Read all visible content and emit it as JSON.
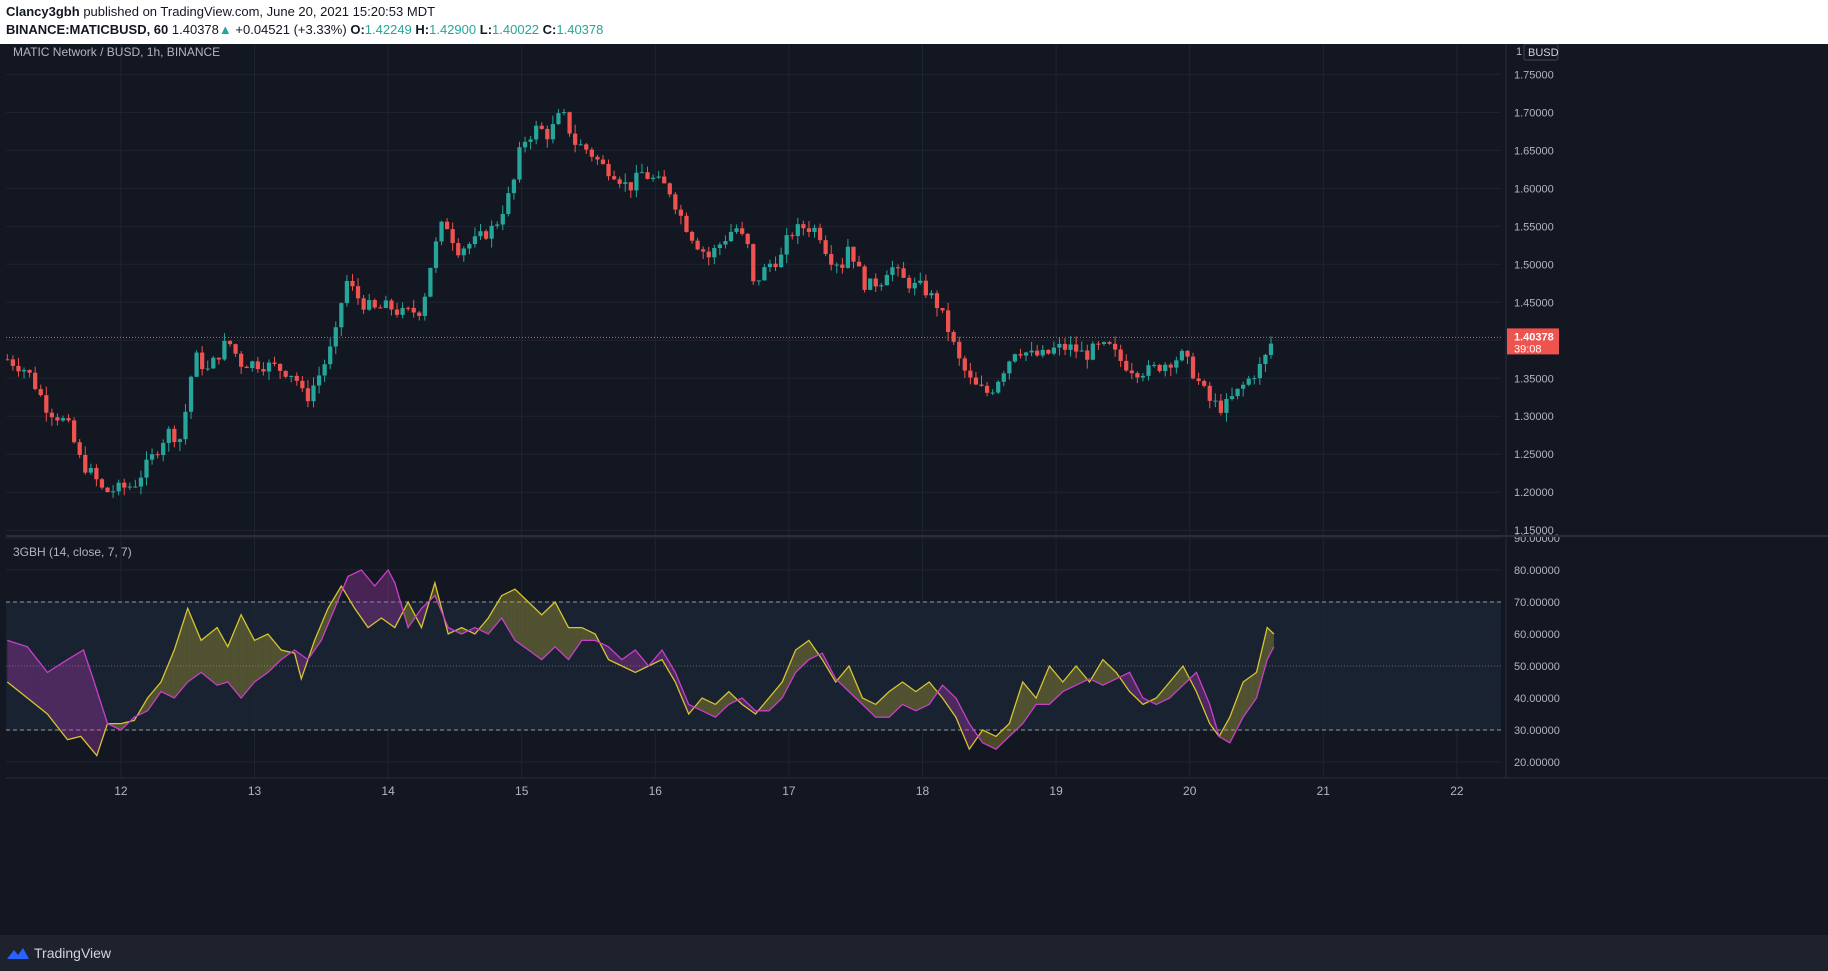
{
  "header": {
    "author": "Clancy3gbh",
    "published": "published on TradingView.com, June 20, 2021 15:20:53 MDT",
    "symbol": "BINANCE:MATICBUSD, 60",
    "last": "1.40378",
    "change_arrow": "▲",
    "change": "+0.04521 (+3.33%)",
    "o_label": "O:",
    "o_value": "1.42249",
    "h_label": "H:",
    "h_value": "1.42900",
    "l_label": "L:",
    "l_value": "1.40022",
    "c_label": "C:",
    "c_value": "1.40378"
  },
  "colors": {
    "background": "#131722",
    "grid": "#1f2430",
    "up": "#26a69a",
    "down": "#ef5350",
    "fast_line": "#d4c531",
    "slow_line": "#c83fc8",
    "band_fill": "#192231"
  },
  "footer": {
    "brand": "TradingView",
    "logo_icon": "tradingview-logo-icon"
  },
  "chart_data": [
    {
      "type": "candlestick",
      "title": "MATIC Network / BUSD, 1h, BINANCE",
      "currency": "BUSD",
      "scale_mode": "1",
      "x_ticks": [
        "12",
        "13",
        "14",
        "15",
        "16",
        "17",
        "18",
        "19",
        "20",
        "21",
        "22"
      ],
      "y_ticks": [
        "1.75000",
        "1.70000",
        "1.65000",
        "1.60000",
        "1.55000",
        "1.50000",
        "1.45000",
        "1.40000",
        "1.35000",
        "1.30000",
        "1.25000",
        "1.20000",
        "1.15000"
      ],
      "ylim": [
        1.145,
        1.79
      ],
      "xlim": [
        11.14,
        22.33
      ],
      "last_price": "1.40378",
      "countdown": "39:08",
      "anchors": [
        [
          11.15,
          1.375
        ],
        [
          11.3,
          1.36
        ],
        [
          11.45,
          1.31
        ],
        [
          11.6,
          1.29
        ],
        [
          11.7,
          1.24
        ],
        [
          11.8,
          1.22
        ],
        [
          11.87,
          1.2
        ],
        [
          12.0,
          1.205
        ],
        [
          12.1,
          1.21
        ],
        [
          12.25,
          1.25
        ],
        [
          12.35,
          1.28
        ],
        [
          12.45,
          1.27
        ],
        [
          12.55,
          1.38
        ],
        [
          12.65,
          1.36
        ],
        [
          12.8,
          1.4
        ],
        [
          12.9,
          1.37
        ],
        [
          13.0,
          1.37
        ],
        [
          13.15,
          1.365
        ],
        [
          13.3,
          1.355
        ],
        [
          13.38,
          1.32
        ],
        [
          13.5,
          1.36
        ],
        [
          13.6,
          1.4
        ],
        [
          13.68,
          1.48
        ],
        [
          13.8,
          1.45
        ],
        [
          13.9,
          1.44
        ],
        [
          14.0,
          1.445
        ],
        [
          14.1,
          1.435
        ],
        [
          14.25,
          1.44
        ],
        [
          14.33,
          1.51
        ],
        [
          14.42,
          1.56
        ],
        [
          14.52,
          1.52
        ],
        [
          14.65,
          1.53
        ],
        [
          14.8,
          1.55
        ],
        [
          14.93,
          1.6
        ],
        [
          15.0,
          1.66
        ],
        [
          15.12,
          1.68
        ],
        [
          15.2,
          1.67
        ],
        [
          15.3,
          1.7
        ],
        [
          15.4,
          1.66
        ],
        [
          15.5,
          1.65
        ],
        [
          15.6,
          1.63
        ],
        [
          15.7,
          1.62
        ],
        [
          15.8,
          1.6
        ],
        [
          15.9,
          1.62
        ],
        [
          16.0,
          1.61
        ],
        [
          16.1,
          1.6
        ],
        [
          16.2,
          1.56
        ],
        [
          16.3,
          1.53
        ],
        [
          16.4,
          1.51
        ],
        [
          16.5,
          1.53
        ],
        [
          16.6,
          1.55
        ],
        [
          16.7,
          1.52
        ],
        [
          16.72,
          1.47
        ],
        [
          16.85,
          1.5
        ],
        [
          16.95,
          1.51
        ],
        [
          17.0,
          1.54
        ],
        [
          17.12,
          1.55
        ],
        [
          17.22,
          1.545
        ],
        [
          17.3,
          1.51
        ],
        [
          17.4,
          1.5
        ],
        [
          17.45,
          1.53
        ],
        [
          17.5,
          1.5
        ],
        [
          17.58,
          1.47
        ],
        [
          17.7,
          1.48
        ],
        [
          17.75,
          1.5
        ],
        [
          17.85,
          1.48
        ],
        [
          17.95,
          1.47
        ],
        [
          18.0,
          1.47
        ],
        [
          18.1,
          1.45
        ],
        [
          18.18,
          1.42
        ],
        [
          18.28,
          1.37
        ],
        [
          18.38,
          1.34
        ],
        [
          18.5,
          1.33
        ],
        [
          18.6,
          1.36
        ],
        [
          18.7,
          1.39
        ],
        [
          18.82,
          1.38
        ],
        [
          18.92,
          1.38
        ],
        [
          19.0,
          1.39
        ],
        [
          19.12,
          1.39
        ],
        [
          19.22,
          1.38
        ],
        [
          19.3,
          1.39
        ],
        [
          19.4,
          1.39
        ],
        [
          19.5,
          1.37
        ],
        [
          19.6,
          1.36
        ],
        [
          19.7,
          1.36
        ],
        [
          19.82,
          1.37
        ],
        [
          19.95,
          1.38
        ],
        [
          20.05,
          1.35
        ],
        [
          20.15,
          1.32
        ],
        [
          20.25,
          1.31
        ],
        [
          20.35,
          1.33
        ],
        [
          20.45,
          1.35
        ],
        [
          20.55,
          1.37
        ],
        [
          20.63,
          1.405
        ]
      ]
    },
    {
      "type": "line",
      "title": "3GBH (14, close, 7, 7)",
      "y_ticks": [
        "90.00000",
        "80.00000",
        "70.00000",
        "60.00000",
        "50.00000",
        "40.00000",
        "30.00000",
        "20.00000"
      ],
      "ylim": [
        15,
        90
      ],
      "upper_band": 70,
      "lower_band": 30,
      "middle_line": 50,
      "series": [
        {
          "key": "fast",
          "points": [
            [
              11.15,
              45
            ],
            [
              11.3,
              40
            ],
            [
              11.45,
              35
            ],
            [
              11.6,
              27
            ],
            [
              11.7,
              28
            ],
            [
              11.82,
              22
            ],
            [
              11.9,
              32
            ],
            [
              12.0,
              32
            ],
            [
              12.1,
              33
            ],
            [
              12.2,
              40
            ],
            [
              12.3,
              45
            ],
            [
              12.4,
              55
            ],
            [
              12.5,
              68
            ],
            [
              12.6,
              58
            ],
            [
              12.72,
              62
            ],
            [
              12.8,
              56
            ],
            [
              12.9,
              66
            ],
            [
              13.0,
              58
            ],
            [
              13.1,
              60
            ],
            [
              13.2,
              55
            ],
            [
              13.3,
              54
            ],
            [
              13.35,
              46
            ],
            [
              13.45,
              58
            ],
            [
              13.55,
              68
            ],
            [
              13.65,
              75
            ],
            [
              13.75,
              68
            ],
            [
              13.85,
              62
            ],
            [
              13.95,
              65
            ],
            [
              14.05,
              62
            ],
            [
              14.15,
              70
            ],
            [
              14.25,
              62
            ],
            [
              14.35,
              76
            ],
            [
              14.45,
              60
            ],
            [
              14.55,
              62
            ],
            [
              14.65,
              60
            ],
            [
              14.75,
              65
            ],
            [
              14.85,
              72
            ],
            [
              14.95,
              74
            ],
            [
              15.05,
              70
            ],
            [
              15.15,
              66
            ],
            [
              15.25,
              70
            ],
            [
              15.35,
              62
            ],
            [
              15.45,
              62
            ],
            [
              15.55,
              60
            ],
            [
              15.65,
              52
            ],
            [
              15.75,
              50
            ],
            [
              15.85,
              48
            ],
            [
              15.95,
              50
            ],
            [
              16.05,
              52
            ],
            [
              16.15,
              45
            ],
            [
              16.25,
              35
            ],
            [
              16.35,
              40
            ],
            [
              16.45,
              38
            ],
            [
              16.55,
              42
            ],
            [
              16.65,
              38
            ],
            [
              16.75,
              35
            ],
            [
              16.85,
              40
            ],
            [
              16.95,
              45
            ],
            [
              17.05,
              55
            ],
            [
              17.15,
              58
            ],
            [
              17.25,
              52
            ],
            [
              17.35,
              45
            ],
            [
              17.45,
              50
            ],
            [
              17.55,
              40
            ],
            [
              17.65,
              38
            ],
            [
              17.75,
              42
            ],
            [
              17.85,
              45
            ],
            [
              17.95,
              42
            ],
            [
              18.05,
              45
            ],
            [
              18.15,
              40
            ],
            [
              18.25,
              34
            ],
            [
              18.35,
              24
            ],
            [
              18.45,
              30
            ],
            [
              18.55,
              28
            ],
            [
              18.65,
              32
            ],
            [
              18.75,
              45
            ],
            [
              18.85,
              40
            ],
            [
              18.95,
              50
            ],
            [
              19.05,
              45
            ],
            [
              19.15,
              50
            ],
            [
              19.25,
              45
            ],
            [
              19.35,
              52
            ],
            [
              19.45,
              48
            ],
            [
              19.55,
              42
            ],
            [
              19.65,
              38
            ],
            [
              19.75,
              40
            ],
            [
              19.85,
              45
            ],
            [
              19.95,
              50
            ],
            [
              20.05,
              42
            ],
            [
              20.15,
              32
            ],
            [
              20.22,
              28
            ],
            [
              20.3,
              34
            ],
            [
              20.4,
              45
            ],
            [
              20.5,
              48
            ],
            [
              20.58,
              62
            ],
            [
              20.63,
              60
            ]
          ]
        },
        {
          "key": "slow",
          "points": [
            [
              11.15,
              58
            ],
            [
              11.3,
              56
            ],
            [
              11.45,
              48
            ],
            [
              11.6,
              52
            ],
            [
              11.72,
              55
            ],
            [
              11.8,
              45
            ],
            [
              11.9,
              32
            ],
            [
              12.0,
              30
            ],
            [
              12.1,
              34
            ],
            [
              12.2,
              36
            ],
            [
              12.3,
              42
            ],
            [
              12.4,
              40
            ],
            [
              12.5,
              45
            ],
            [
              12.6,
              48
            ],
            [
              12.72,
              44
            ],
            [
              12.8,
              45
            ],
            [
              12.9,
              40
            ],
            [
              13.0,
              45
            ],
            [
              13.1,
              48
            ],
            [
              13.2,
              52
            ],
            [
              13.3,
              55
            ],
            [
              13.4,
              52
            ],
            [
              13.5,
              58
            ],
            [
              13.6,
              68
            ],
            [
              13.7,
              78
            ],
            [
              13.8,
              80
            ],
            [
              13.9,
              75
            ],
            [
              14.0,
              80
            ],
            [
              14.05,
              76
            ],
            [
              14.15,
              62
            ],
            [
              14.25,
              68
            ],
            [
              14.35,
              72
            ],
            [
              14.45,
              62
            ],
            [
              14.55,
              60
            ],
            [
              14.65,
              62
            ],
            [
              14.75,
              60
            ],
            [
              14.85,
              65
            ],
            [
              14.95,
              58
            ],
            [
              15.05,
              55
            ],
            [
              15.15,
              52
            ],
            [
              15.25,
              56
            ],
            [
              15.35,
              52
            ],
            [
              15.45,
              58
            ],
            [
              15.55,
              58
            ],
            [
              15.65,
              56
            ],
            [
              15.75,
              52
            ],
            [
              15.85,
              55
            ],
            [
              15.95,
              50
            ],
            [
              16.05,
              55
            ],
            [
              16.15,
              48
            ],
            [
              16.25,
              38
            ],
            [
              16.35,
              36
            ],
            [
              16.45,
              34
            ],
            [
              16.55,
              38
            ],
            [
              16.65,
              40
            ],
            [
              16.75,
              36
            ],
            [
              16.85,
              36
            ],
            [
              16.95,
              40
            ],
            [
              17.05,
              48
            ],
            [
              17.15,
              52
            ],
            [
              17.25,
              54
            ],
            [
              17.35,
              46
            ],
            [
              17.45,
              42
            ],
            [
              17.55,
              38
            ],
            [
              17.65,
              34
            ],
            [
              17.75,
              34
            ],
            [
              17.85,
              38
            ],
            [
              17.95,
              36
            ],
            [
              18.05,
              38
            ],
            [
              18.15,
              44
            ],
            [
              18.25,
              40
            ],
            [
              18.35,
              32
            ],
            [
              18.45,
              26
            ],
            [
              18.55,
              24
            ],
            [
              18.65,
              28
            ],
            [
              18.75,
              32
            ],
            [
              18.85,
              38
            ],
            [
              18.95,
              38
            ],
            [
              19.05,
              42
            ],
            [
              19.15,
              44
            ],
            [
              19.25,
              46
            ],
            [
              19.35,
              44
            ],
            [
              19.45,
              46
            ],
            [
              19.55,
              48
            ],
            [
              19.65,
              40
            ],
            [
              19.75,
              38
            ],
            [
              19.85,
              40
            ],
            [
              19.95,
              44
            ],
            [
              20.05,
              48
            ],
            [
              20.15,
              38
            ],
            [
              20.22,
              28
            ],
            [
              20.3,
              26
            ],
            [
              20.4,
              34
            ],
            [
              20.5,
              40
            ],
            [
              20.58,
              52
            ],
            [
              20.63,
              56
            ]
          ]
        }
      ]
    }
  ]
}
